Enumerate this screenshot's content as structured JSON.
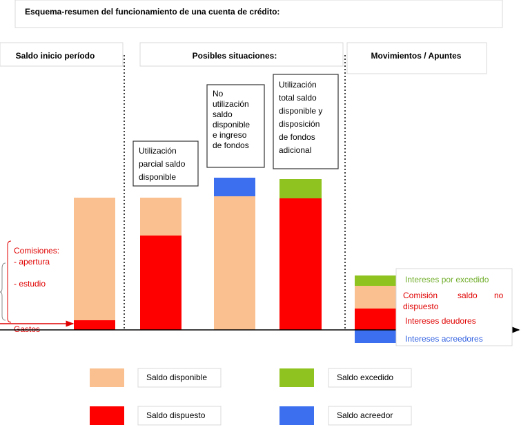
{
  "title": "Esquema-resumen del funcionamiento de una cuenta de crédito:",
  "headers": [
    "Saldo inicio período",
    "Posibles situaciones:",
    "Movimientos / Apuntes"
  ],
  "situations": [
    [
      "Utilización",
      "parcial saldo",
      "disponible"
    ],
    [
      "No",
      "utilización",
      "saldo",
      "disponible",
      "e ingreso",
      "de fondos"
    ],
    [
      "Utilización",
      "total saldo",
      "disponible y",
      "disposición",
      "de fondos",
      "adicional"
    ]
  ],
  "left_notes": [
    "Comisiones:",
    "- apertura",
    "- estudio",
    "Gastos"
  ],
  "movements": [
    "Intereses por excedido",
    [
      "Comisión",
      "saldo",
      "no",
      "dispuesto"
    ],
    "Intereses deudores",
    "Intereses acreedores"
  ],
  "legend": [
    "Saldo disponible",
    "Saldo excedido",
    "Saldo dispuesto",
    "Saldo acreedor"
  ]
}
